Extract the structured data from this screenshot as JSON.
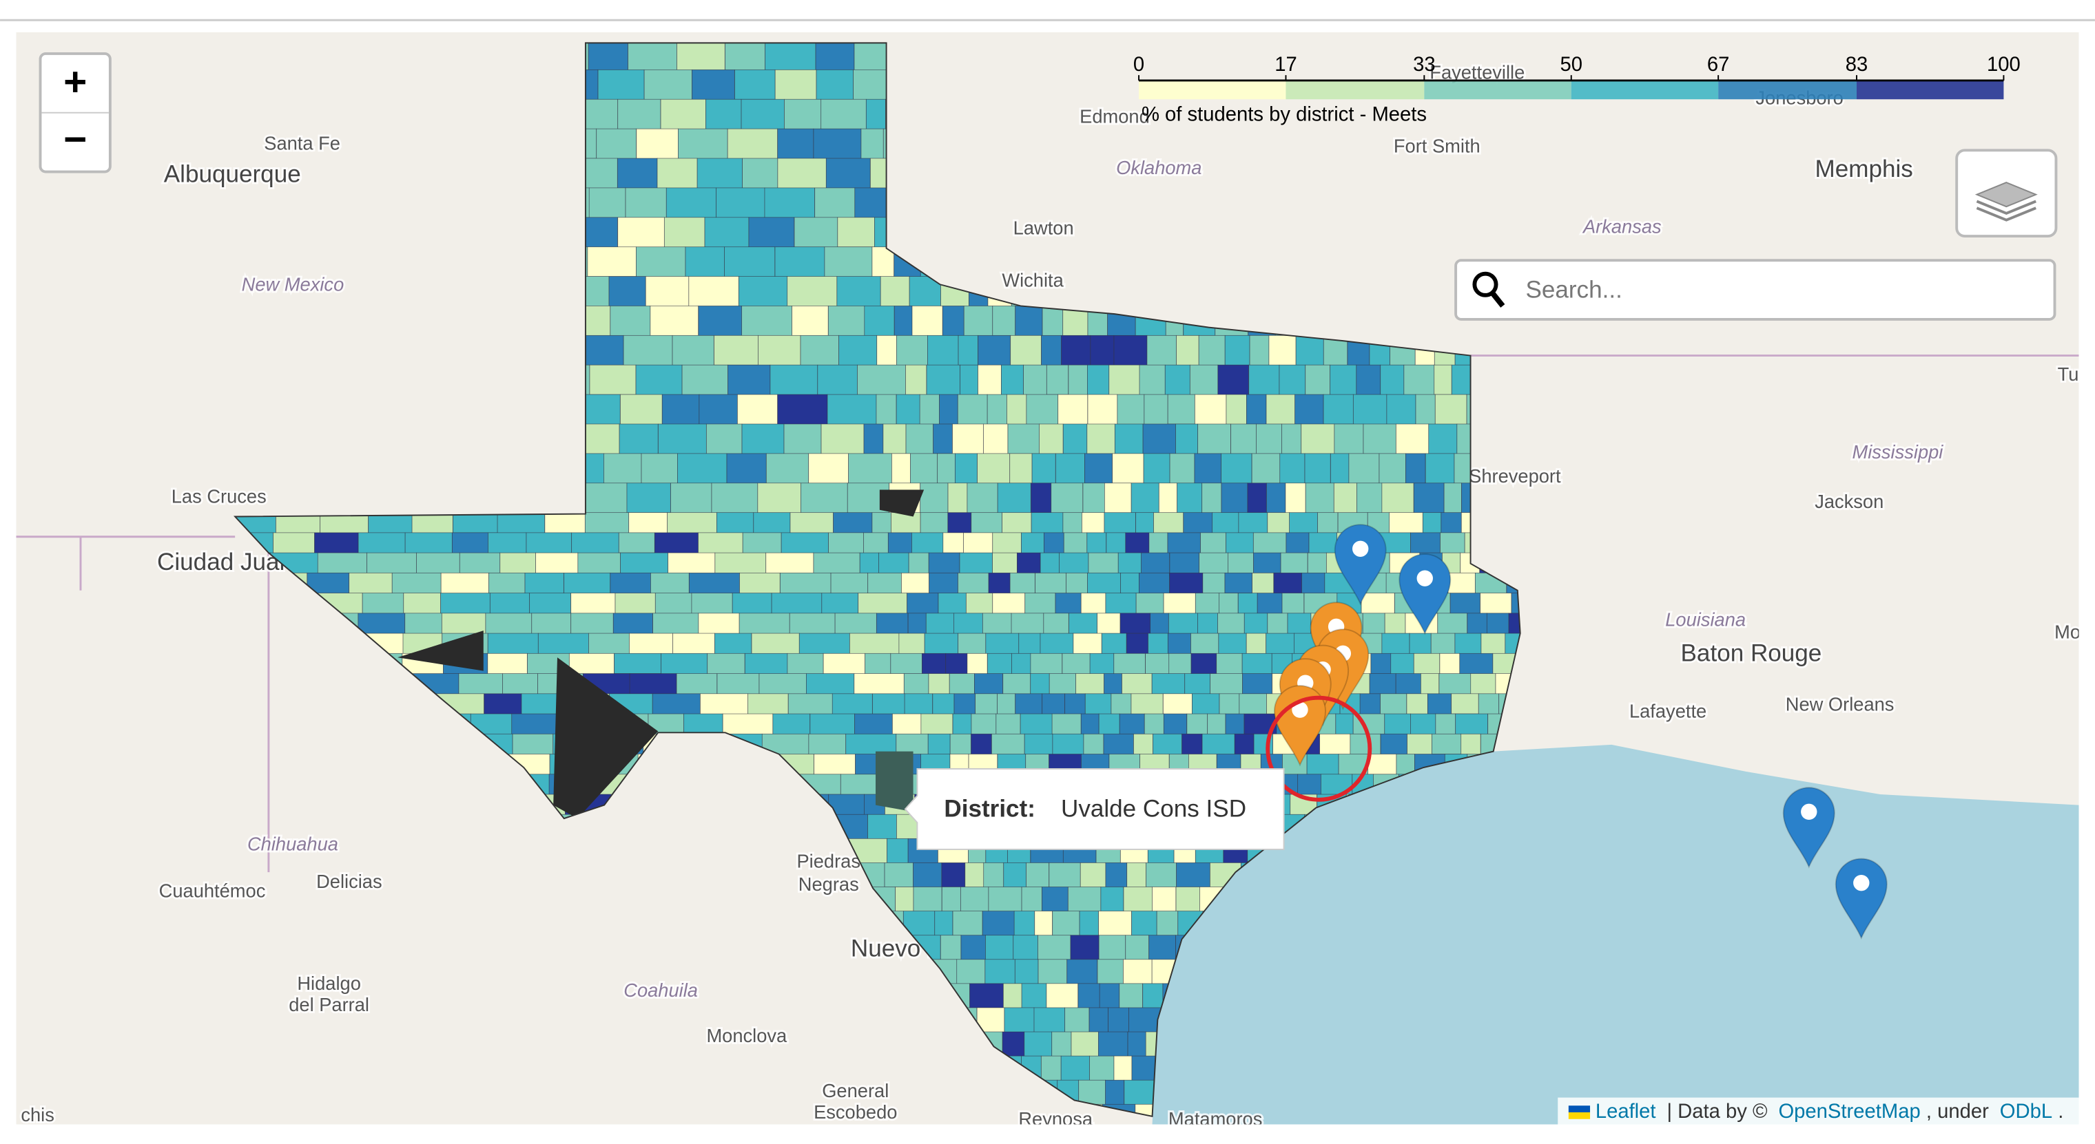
{
  "zoom": {
    "in": "+",
    "out": "−"
  },
  "legend": {
    "title": "% of students by district - Meets",
    "ticks": [
      0,
      17,
      33,
      50,
      67,
      83,
      100
    ],
    "colors": [
      "#ffffcc",
      "#c7e9b4",
      "#7fcdbb",
      "#41b6c4",
      "#2c7fb8",
      "#253494"
    ]
  },
  "search": {
    "placeholder": "Search..."
  },
  "tooltip": {
    "label": "District:",
    "value": "Uvalde Cons ISD"
  },
  "attribution": {
    "leaflet": "Leaflet",
    "data_by": "| Data by ©",
    "osm": "OpenStreetMap",
    "under": ", under",
    "odbl": "ODbL",
    "end": "."
  },
  "place_labels": [
    "Albuquerque",
    "Santa Fe",
    "New Mexico",
    "Las Cruces",
    "Ciudad Juárez",
    "Chihuahua",
    "Cuauhtémoc",
    "Delicias",
    "Hidalgo",
    "del Parral",
    "Coahuila",
    "Monclova",
    "General",
    "Escobedo",
    "Reynosa",
    "Matamoros",
    "Nuevo Laredo",
    "Piedras",
    "Negras",
    "Lawton",
    "Wichita",
    "Oklahoma",
    "Edmond",
    "Fort Smith",
    "Fayetteville",
    "Jonesboro",
    "Memphis",
    "Arkansas",
    "Shreveport",
    "Mississippi",
    "Jackson",
    "Louisiana",
    "Baton Rouge",
    "Lafayette",
    "New Orleans",
    "Mobi",
    "Tu",
    "chis"
  ]
}
